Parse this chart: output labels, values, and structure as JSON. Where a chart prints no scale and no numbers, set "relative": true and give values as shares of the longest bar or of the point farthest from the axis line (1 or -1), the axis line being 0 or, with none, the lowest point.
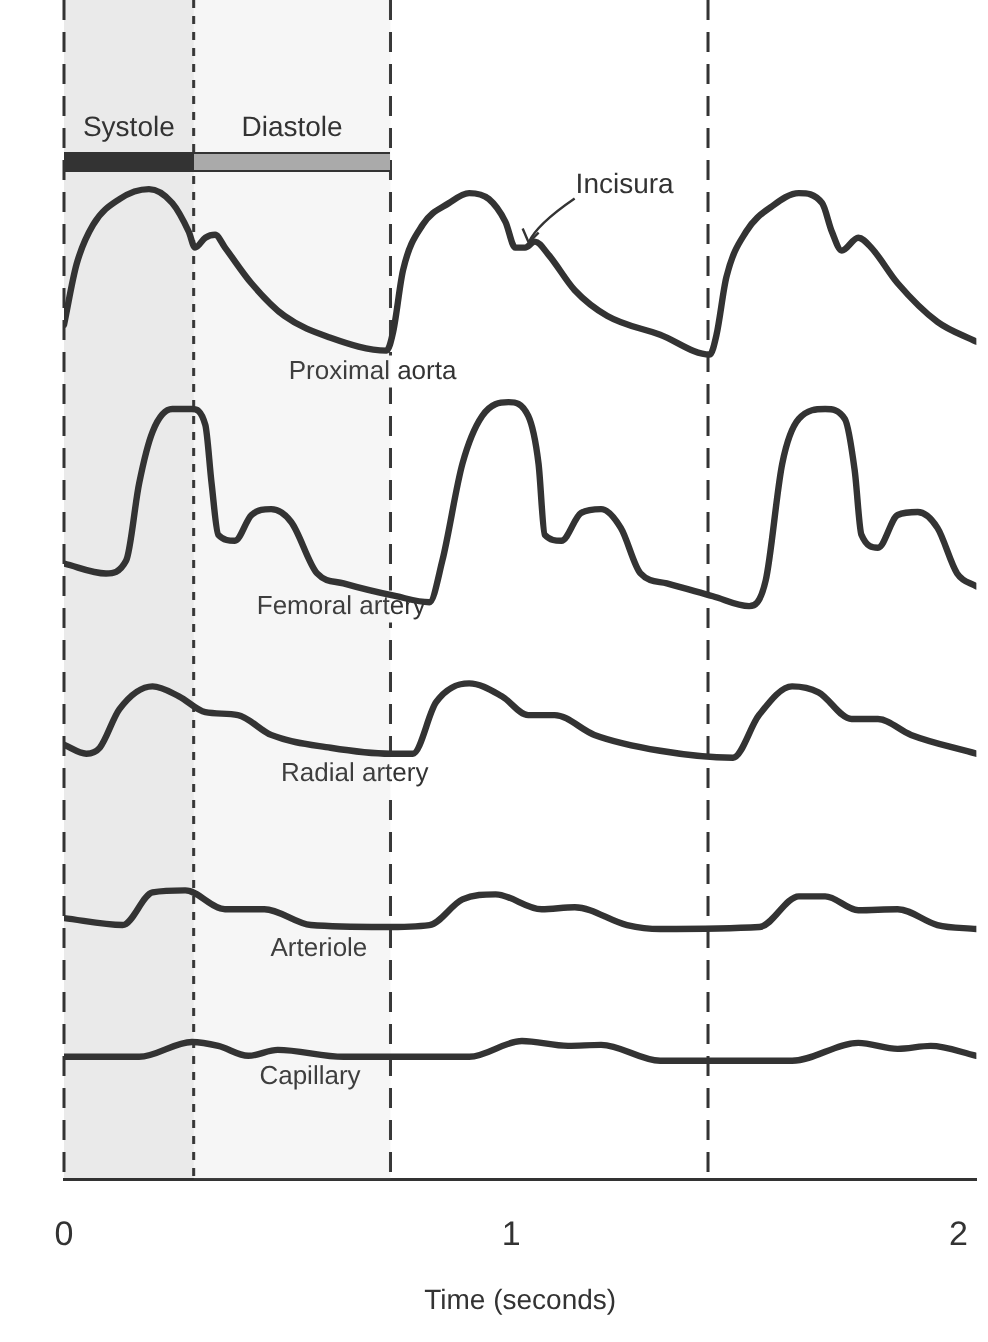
{
  "chart_data": {
    "type": "line",
    "relative": true,
    "xlabel": "Time (seconds)",
    "xlim": [
      0,
      2.04
    ],
    "xticks": [
      0,
      1,
      2
    ],
    "grid": false,
    "legend": false,
    "marker": "none",
    "line_style": "solid",
    "tick_labels": "x",
    "series": [
      {
        "name": "Proximal aorta",
        "color": "#333333",
        "x": [
          0,
          0.028,
          0.065,
          0.124,
          0.19,
          0.242,
          0.279,
          0.293,
          0.316,
          0.338,
          0.36,
          0.419,
          0.493,
          0.596,
          0.721,
          0.736,
          0.758,
          0.802,
          0.861,
          0.906,
          0.95,
          0.987,
          1.009,
          1.031,
          1.053,
          1.083,
          1.142,
          1.215,
          1.333,
          1.444,
          1.459,
          1.481,
          1.525,
          1.584,
          1.643,
          1.695,
          1.717,
          1.739,
          1.776,
          1.805,
          1.864,
          1.953,
          2.04
        ],
        "values": [
          0.863,
          0.924,
          0.964,
          0.99,
          1,
          0.986,
          0.957,
          0.941,
          0.951,
          0.954,
          0.941,
          0.905,
          0.872,
          0.85,
          0.837,
          0.856,
          0.918,
          0.964,
          0.986,
          0.996,
          0.99,
          0.967,
          0.941,
          0.941,
          0.947,
          0.934,
          0.898,
          0.872,
          0.853,
          0.833,
          0.853,
          0.911,
          0.957,
          0.983,
          0.996,
          0.986,
          0.957,
          0.938,
          0.951,
          0.941,
          0.905,
          0.866,
          0.846
        ]
      },
      {
        "name": "Femoral artery",
        "color": "#333333",
        "x": [
          0,
          0.094,
          0.139,
          0.168,
          0.198,
          0.242,
          0.286,
          0.316,
          0.33,
          0.345,
          0.382,
          0.419,
          0.463,
          0.508,
          0.566,
          0.625,
          0.743,
          0.817,
          0.846,
          0.891,
          0.935,
          0.994,
          1.038,
          1.061,
          1.075,
          1.112,
          1.156,
          1.201,
          1.245,
          1.289,
          1.348,
          1.451,
          1.532,
          1.569,
          1.606,
          1.643,
          1.702,
          1.746,
          1.768,
          1.783,
          1.82,
          1.864,
          1.909,
          1.953,
          1.997,
          2.04
        ],
        "values": [
          0.622,
          0.612,
          0.625,
          0.703,
          0.755,
          0.778,
          0.778,
          0.762,
          0.703,
          0.651,
          0.645,
          0.671,
          0.677,
          0.664,
          0.612,
          0.602,
          0.589,
          0.583,
          0.625,
          0.723,
          0.771,
          0.785,
          0.771,
          0.723,
          0.651,
          0.645,
          0.673,
          0.677,
          0.658,
          0.612,
          0.602,
          0.589,
          0.579,
          0.605,
          0.723,
          0.768,
          0.778,
          0.768,
          0.716,
          0.651,
          0.638,
          0.671,
          0.674,
          0.658,
          0.612,
          0.599
        ]
      },
      {
        "name": "Radial artery",
        "color": "#333333",
        "x": [
          0,
          0.05,
          0.08,
          0.124,
          0.198,
          0.257,
          0.316,
          0.389,
          0.463,
          0.596,
          0.729,
          0.78,
          0.832,
          0.906,
          0.979,
          1.038,
          1.097,
          1.186,
          1.333,
          1.496,
          1.554,
          1.628,
          1.687,
          1.761,
          1.82,
          1.894,
          2.04
        ],
        "values": [
          0.439,
          0.43,
          0.436,
          0.475,
          0.498,
          0.488,
          0.472,
          0.469,
          0.449,
          0.436,
          0.43,
          0.43,
          0.482,
          0.501,
          0.488,
          0.469,
          0.469,
          0.449,
          0.433,
          0.426,
          0.469,
          0.498,
          0.492,
          0.465,
          0.465,
          0.449,
          0.43
        ]
      },
      {
        "name": "Arteriole",
        "color": "#333333",
        "x": [
          0,
          0.131,
          0.198,
          0.271,
          0.36,
          0.448,
          0.552,
          0.714,
          0.817,
          0.891,
          0.965,
          1.068,
          1.142,
          1.259,
          1.333,
          1.555,
          1.643,
          1.702,
          1.776,
          1.864,
          1.953,
          2.04
        ],
        "values": [
          0.264,
          0.257,
          0.29,
          0.292,
          0.273,
          0.273,
          0.257,
          0.255,
          0.257,
          0.283,
          0.288,
          0.273,
          0.275,
          0.257,
          0.253,
          0.255,
          0.286,
          0.286,
          0.272,
          0.273,
          0.257,
          0.253
        ]
      },
      {
        "name": "Capillary",
        "color": "#333333",
        "x": [
          0,
          0.168,
          0.286,
          0.345,
          0.412,
          0.478,
          0.625,
          0.906,
          1.024,
          1.127,
          1.201,
          1.333,
          1.628,
          1.776,
          1.864,
          1.938,
          2.04
        ],
        "values": [
          0.124,
          0.124,
          0.139,
          0.135,
          0.125,
          0.131,
          0.124,
          0.124,
          0.14,
          0.135,
          0.136,
          0.12,
          0.12,
          0.138,
          0.132,
          0.135,
          0.125
        ]
      }
    ],
    "ref_lines": [
      {
        "axis": "x",
        "value": 0,
        "color": "#333333",
        "line_style": "dashed"
      },
      {
        "axis": "x",
        "value": 0.29,
        "color": "#333333",
        "line_style": "dotted"
      },
      {
        "axis": "x",
        "value": 0.73,
        "color": "#333333",
        "line_style": "dashed"
      },
      {
        "axis": "x",
        "value": 1.44,
        "color": "#333333",
        "line_style": "dashed"
      }
    ],
    "bands": [
      {
        "axis": "x",
        "from": 0,
        "to": 0.29,
        "label": "Systole",
        "color": "#333333"
      },
      {
        "axis": "x",
        "from": 0.29,
        "to": 0.73,
        "label": "Diastole",
        "color": "#aaaaaa"
      }
    ],
    "annotations": [
      {
        "text": "Incisura",
        "x": 1.03,
        "y": 0.94
      }
    ]
  }
}
